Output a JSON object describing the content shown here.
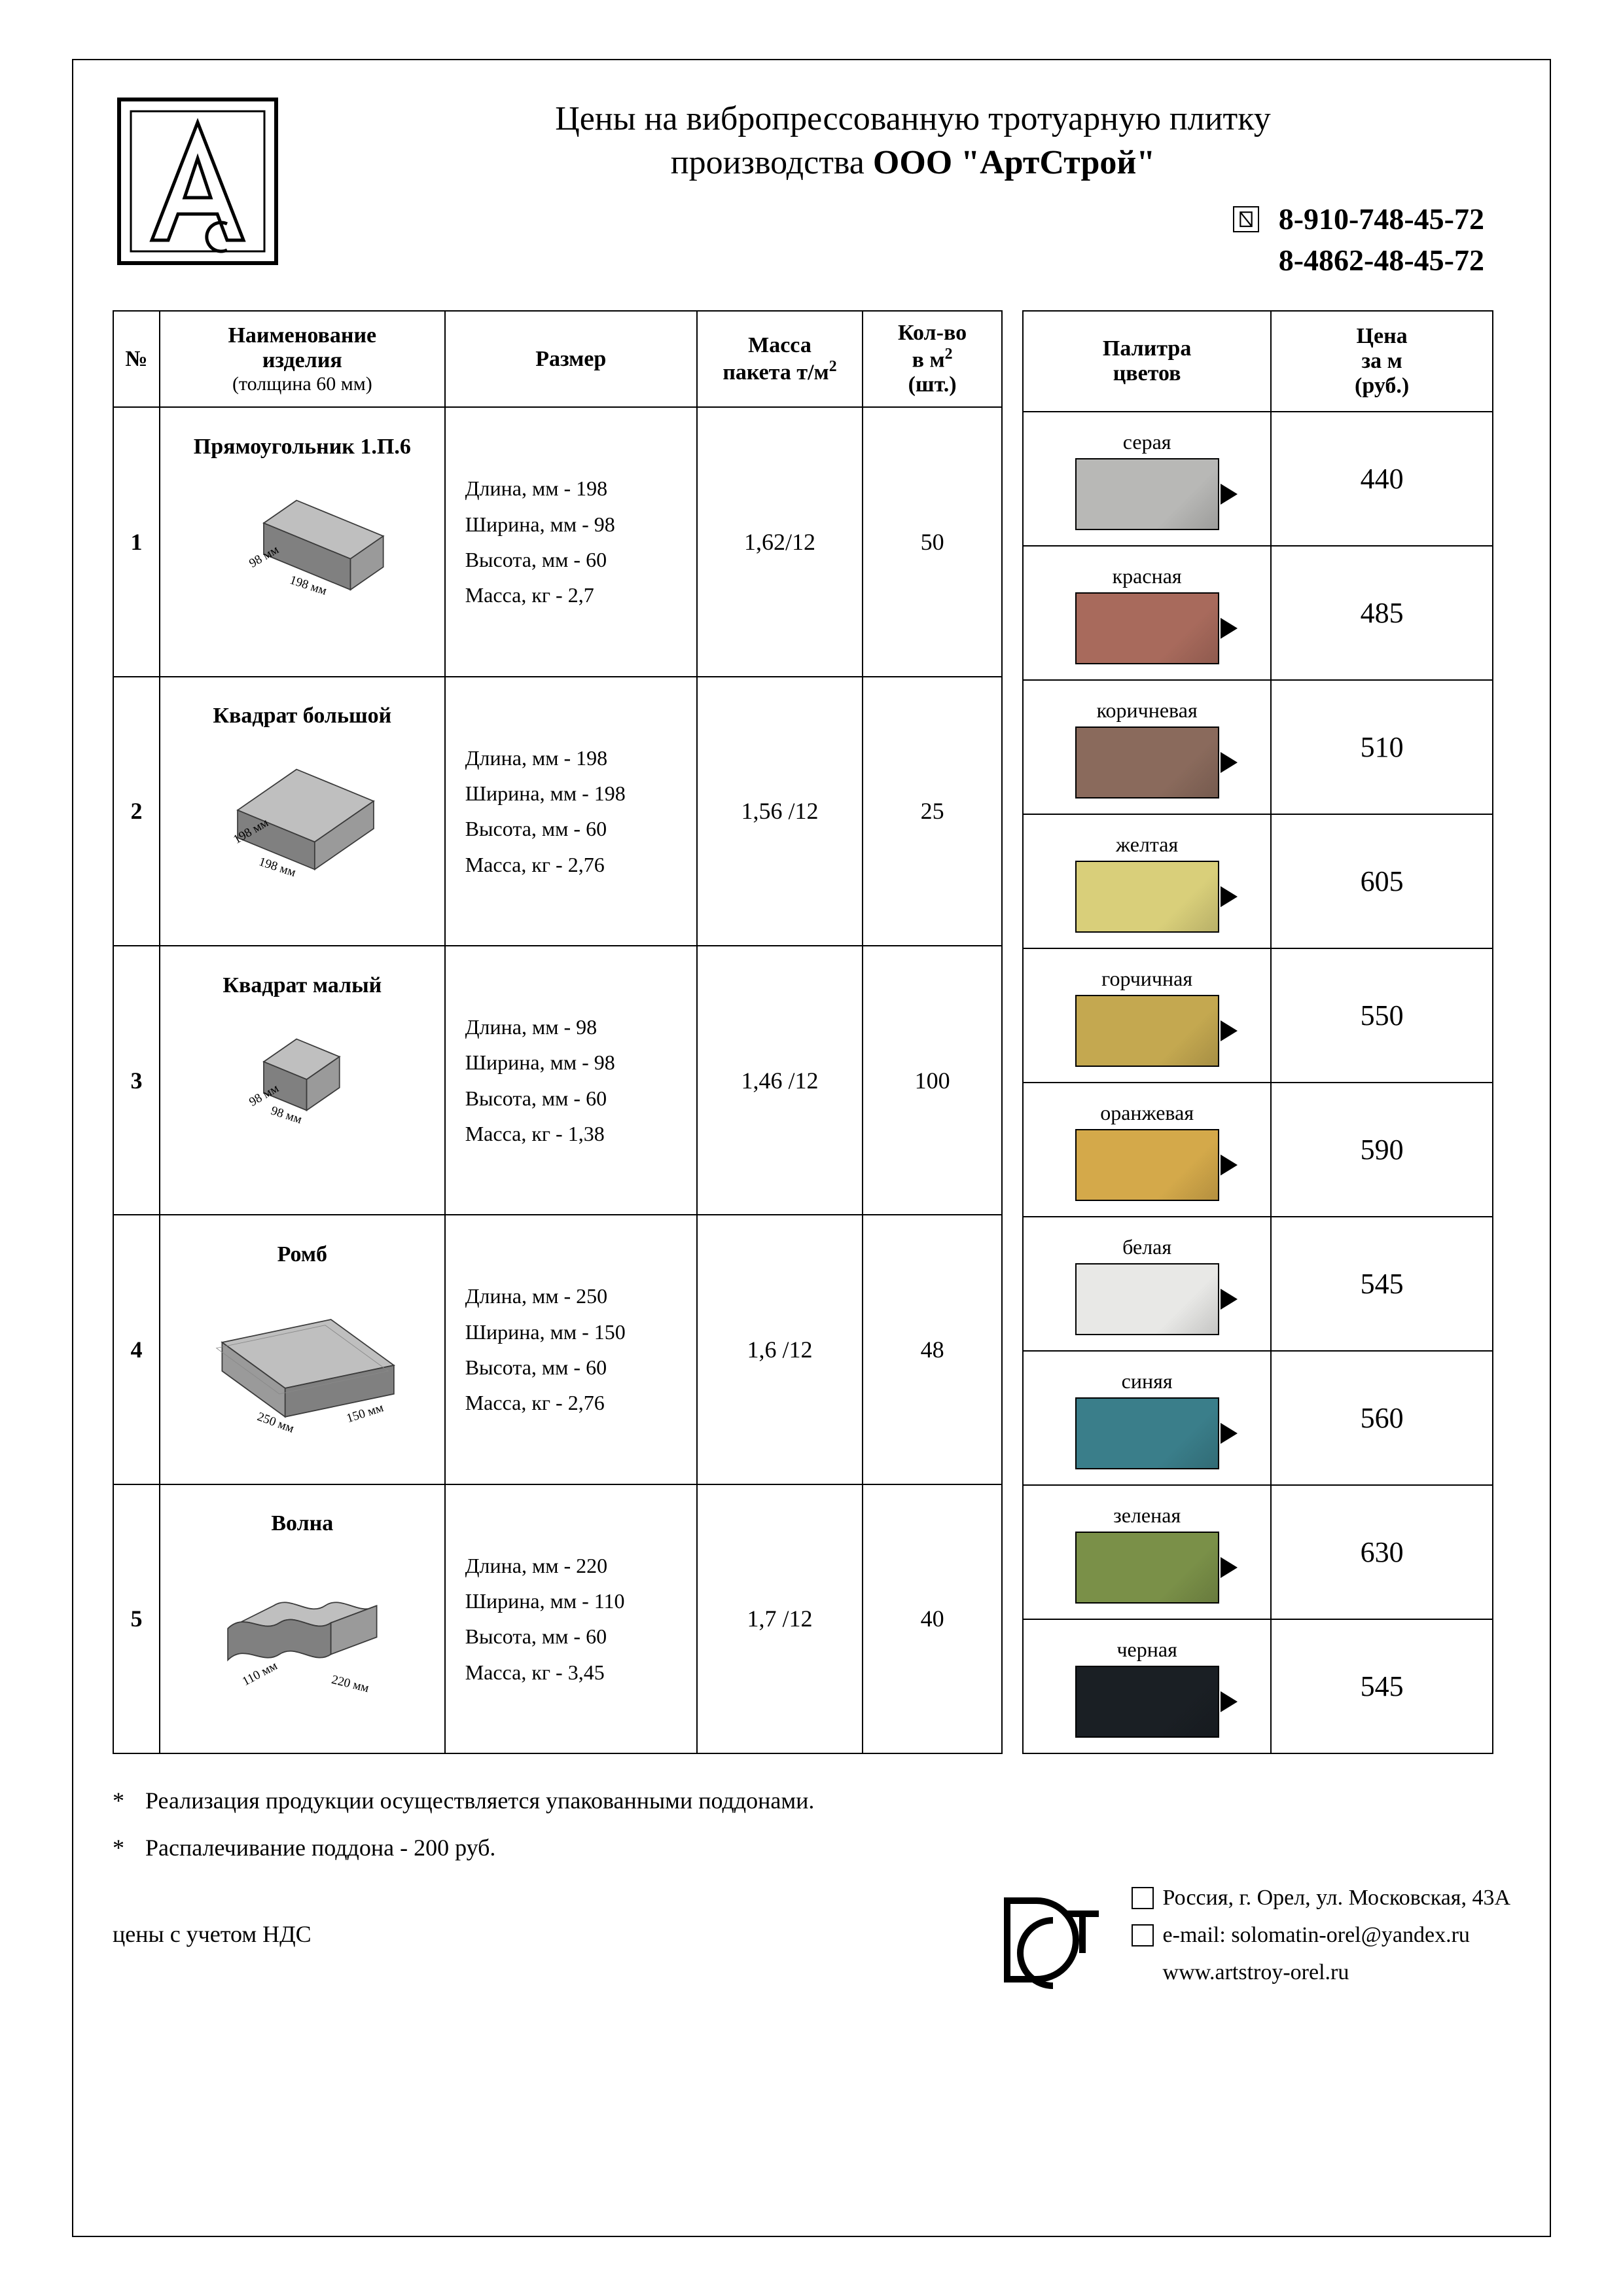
{
  "header": {
    "title_line1": "Цены на вибропрессованную тротуарную плитку",
    "title_line2_prefix": "производства  ",
    "title_line2_bold": "ООО \"АртСтрой\"",
    "phone1": "8-910-748-45-72",
    "phone2": "8-4862-48-45-72"
  },
  "table_headers": {
    "num": "№",
    "name_line1": "Наименование",
    "name_line2": "изделия",
    "name_sub": "(толщина 60 мм)",
    "size": "Размер",
    "mass_line1": "Масса",
    "mass_line2_html": "пакета т/м",
    "qty_line1": "Кол-во",
    "qty_line2_html": "в м",
    "qty_line3": "(шт.)",
    "palette_line1": "Палитра",
    "palette_line2": "цветов",
    "price_line1": "Цена",
    "price_line2": "за м",
    "price_line3": "(руб.)"
  },
  "products": [
    {
      "num": "1",
      "name": "Прямоугольник 1.П.6",
      "shape": "rect",
      "dim_w": "198 мм",
      "dim_d": "98 мм",
      "size_lines": [
        "Длина, мм - 198",
        "Ширина, мм - 98",
        "Высота, мм - 60",
        "Масса, кг - 2,7"
      ],
      "mass": "1,62/12",
      "qty": "50"
    },
    {
      "num": "2",
      "name": "Квадрат большой",
      "shape": "square_big",
      "dim_w": "198 мм",
      "dim_d": "198 мм",
      "size_lines": [
        "Длина, мм - 198",
        "Ширина, мм - 198",
        "Высота, мм - 60",
        "Масса, кг - 2,76"
      ],
      "mass": "1,56 /12",
      "qty": "25"
    },
    {
      "num": "3",
      "name": "Квадрат малый",
      "shape": "square_small",
      "dim_w": "98 мм",
      "dim_d": "98 мм",
      "size_lines": [
        "Длина, мм - 98",
        "Ширина, мм - 98",
        "Высота, мм - 60",
        "Масса, кг - 1,38"
      ],
      "mass": "1,46 /12",
      "qty": "100"
    },
    {
      "num": "4",
      "name": "Ромб",
      "shape": "rhombus",
      "dim_w": "250 мм",
      "dim_d": "150 мм",
      "size_lines": [
        "Длина, мм - 250",
        "Ширина, мм - 150",
        "Высота, мм - 60",
        "Масса, кг - 2,76"
      ],
      "mass": "1,6 /12",
      "qty": "48"
    },
    {
      "num": "5",
      "name": "Волна",
      "shape": "wave",
      "dim_w": "220 мм",
      "dim_d": "110 мм",
      "size_lines": [
        "Длина, мм - 220",
        "Ширина, мм - 110",
        "Высота, мм - 60",
        "Масса, кг - 3,45"
      ],
      "mass": "1,7 /12",
      "qty": "40"
    }
  ],
  "palette": [
    {
      "label": "серая",
      "color": "#b8b8b6",
      "price": "440"
    },
    {
      "label": "красная",
      "color": "#a86a5c",
      "price": "485"
    },
    {
      "label": "коричневая",
      "color": "#8a6a5c",
      "price": "510"
    },
    {
      "label": "желтая",
      "color": "#d9cf7a",
      "price": "605"
    },
    {
      "label": "горчичная",
      "color": "#c4a850",
      "price": "550"
    },
    {
      "label": "оранжевая",
      "color": "#d4a94a",
      "price": "590"
    },
    {
      "label": "белая",
      "color": "#e8e8e6",
      "price": "545"
    },
    {
      "label": "синяя",
      "color": "#3a7e8a",
      "price": "560"
    },
    {
      "label": "зеленая",
      "color": "#7a9048",
      "price": "630"
    },
    {
      "label": "черная",
      "color": "#1a1f24",
      "price": "545"
    }
  ],
  "footer": {
    "note1": "Реализация продукции осуществляется упакованными поддонами.",
    "note2": "Распалечивание поддона - 200 руб.",
    "nds": "цены с учетом НДС",
    "address": "Россия, г. Орел, ул. Московская, 43А",
    "email_label": "e-mail: ",
    "email": "solomatin-orel@yandex.ru",
    "website": "www.artstroy-orel.ru"
  },
  "style": {
    "brick_top": "#bfbfbf",
    "brick_side": "#9a9a9a",
    "brick_front": "#808080",
    "brick_stroke": "#3a3a3a"
  }
}
